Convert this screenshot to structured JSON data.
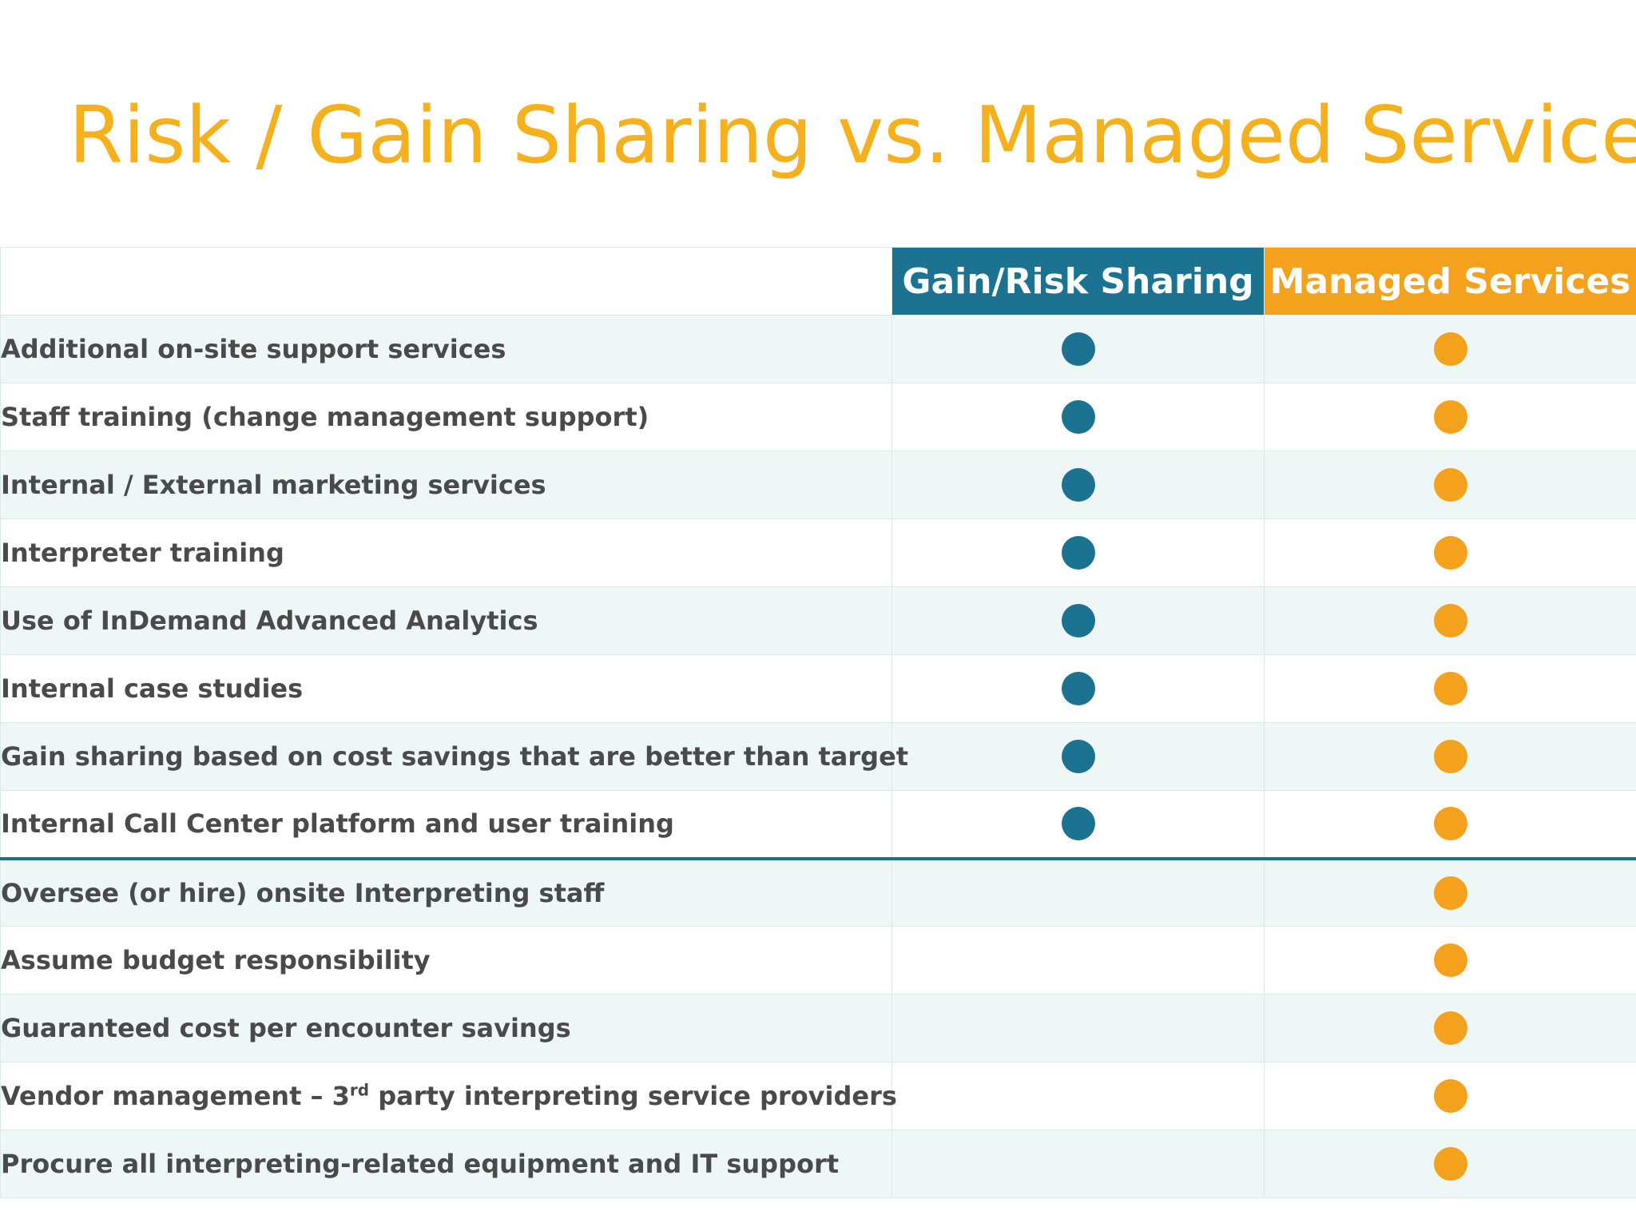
{
  "title": "Risk / Gain Sharing vs. Managed Services",
  "colors": {
    "title": "#f5b01e",
    "gain": "#1b7291",
    "managed": "#f4a11e",
    "row_alt": "#eef7f6"
  },
  "table": {
    "headers": {
      "feature": "",
      "gain": "Gain/Risk Sharing",
      "managed": "Managed Services"
    },
    "rows": [
      {
        "label": "Additional on-site support services",
        "gain": true,
        "managed": true
      },
      {
        "label": "Staff training (change management support)",
        "gain": true,
        "managed": true
      },
      {
        "label": "Internal / External marketing services",
        "gain": true,
        "managed": true
      },
      {
        "label": "Interpreter training",
        "gain": true,
        "managed": true
      },
      {
        "label": "Use of InDemand Advanced Analytics",
        "gain": true,
        "managed": true
      },
      {
        "label": "Internal case studies",
        "gain": true,
        "managed": true
      },
      {
        "label": "Gain sharing based on cost savings that are better than target",
        "gain": true,
        "managed": true
      },
      {
        "label": "Internal Call Center platform and user training",
        "gain": true,
        "managed": true
      },
      {
        "label": "Oversee (or hire) onsite Interpreting staff",
        "gain": false,
        "managed": true
      },
      {
        "label": "Assume budget responsibility",
        "gain": false,
        "managed": true
      },
      {
        "label": "Guaranteed cost per encounter savings",
        "gain": false,
        "managed": true
      },
      {
        "label_pre": "Vendor management – 3",
        "label_sup": "rd",
        "label_post": " party interpreting service providers",
        "gain": false,
        "managed": true
      },
      {
        "label": "Procure all interpreting-related equipment and IT support",
        "gain": false,
        "managed": true
      }
    ]
  }
}
